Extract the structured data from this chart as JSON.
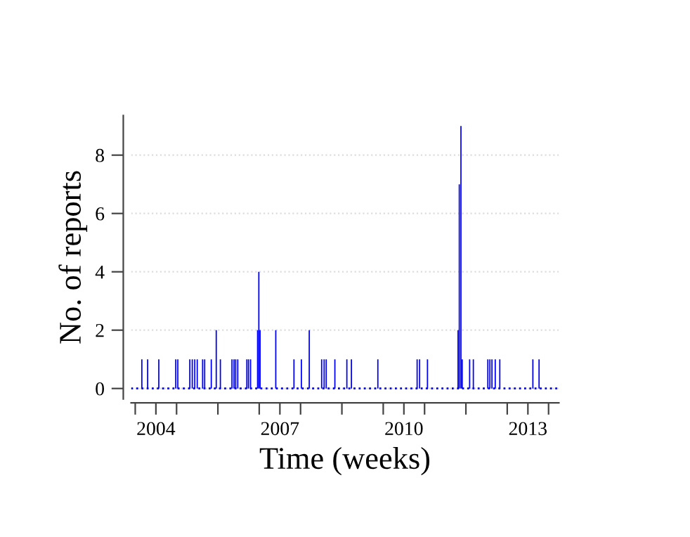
{
  "chart_data": {
    "type": "bar",
    "xlabel": "Time (weeks)",
    "ylabel": "No. of reports",
    "x": [
      2003.16,
      2003.3,
      2003.57,
      2003.98,
      2004.03,
      2004.32,
      2004.38,
      2004.44,
      2004.5,
      2004.63,
      2004.68,
      2004.84,
      2004.96,
      2005.06,
      2005.34,
      2005.39,
      2005.43,
      2005.48,
      2005.7,
      2005.74,
      2005.79,
      2005.96,
      2005.99,
      2006.02,
      2006.4,
      2006.84,
      2007.02,
      2007.21,
      2007.51,
      2007.57,
      2007.62,
      2007.83,
      2008.12,
      2008.23,
      2008.87,
      2009.82,
      2009.88,
      2010.07,
      2010.81,
      2010.84,
      2010.88,
      2010.91,
      2011.09,
      2011.18,
      2011.53,
      2011.58,
      2011.63,
      2011.71,
      2011.82,
      2012.62,
      2012.77
    ],
    "series": [
      {
        "color": "#0000ff",
        "values": [
          1,
          1,
          1,
          1,
          1,
          1,
          1,
          1,
          1,
          1,
          1,
          1,
          2,
          1,
          1,
          1,
          1,
          1,
          1,
          1,
          1,
          2,
          4,
          2,
          2,
          1,
          1,
          2,
          1,
          1,
          1,
          1,
          1,
          1,
          1,
          1,
          1,
          1,
          2,
          7,
          9,
          1,
          1,
          1,
          1,
          1,
          1,
          1,
          1,
          1,
          1
        ]
      }
    ],
    "ref_lines": [
      {
        "axis": "y",
        "value": 0,
        "color": "#0000ff",
        "line_style": "dotted"
      }
    ],
    "xlim": [
      2002.9,
      2013.25
    ],
    "ylim": [
      -0.36,
      9.36
    ],
    "xticks": [
      {
        "value": 2003,
        "label": null
      },
      {
        "value": 2004,
        "label": null
      },
      {
        "value": 2005,
        "label": null
      },
      {
        "value": 2006,
        "label": null
      },
      {
        "value": 2007,
        "label": null
      },
      {
        "value": 2008,
        "label": null
      },
      {
        "value": 2009,
        "label": null
      },
      {
        "value": 2010,
        "label": null
      },
      {
        "value": 2011,
        "label": null
      },
      {
        "value": 2012,
        "label": null
      },
      {
        "value": 2013,
        "label": null
      },
      {
        "value": 2003.5,
        "label": "2004"
      },
      {
        "value": 2006.5,
        "label": "2007"
      },
      {
        "value": 2009.5,
        "label": "2010"
      },
      {
        "value": 2012.5,
        "label": "2013"
      }
    ],
    "yticks": [
      0,
      2,
      4,
      6,
      8
    ],
    "grid": "y"
  }
}
